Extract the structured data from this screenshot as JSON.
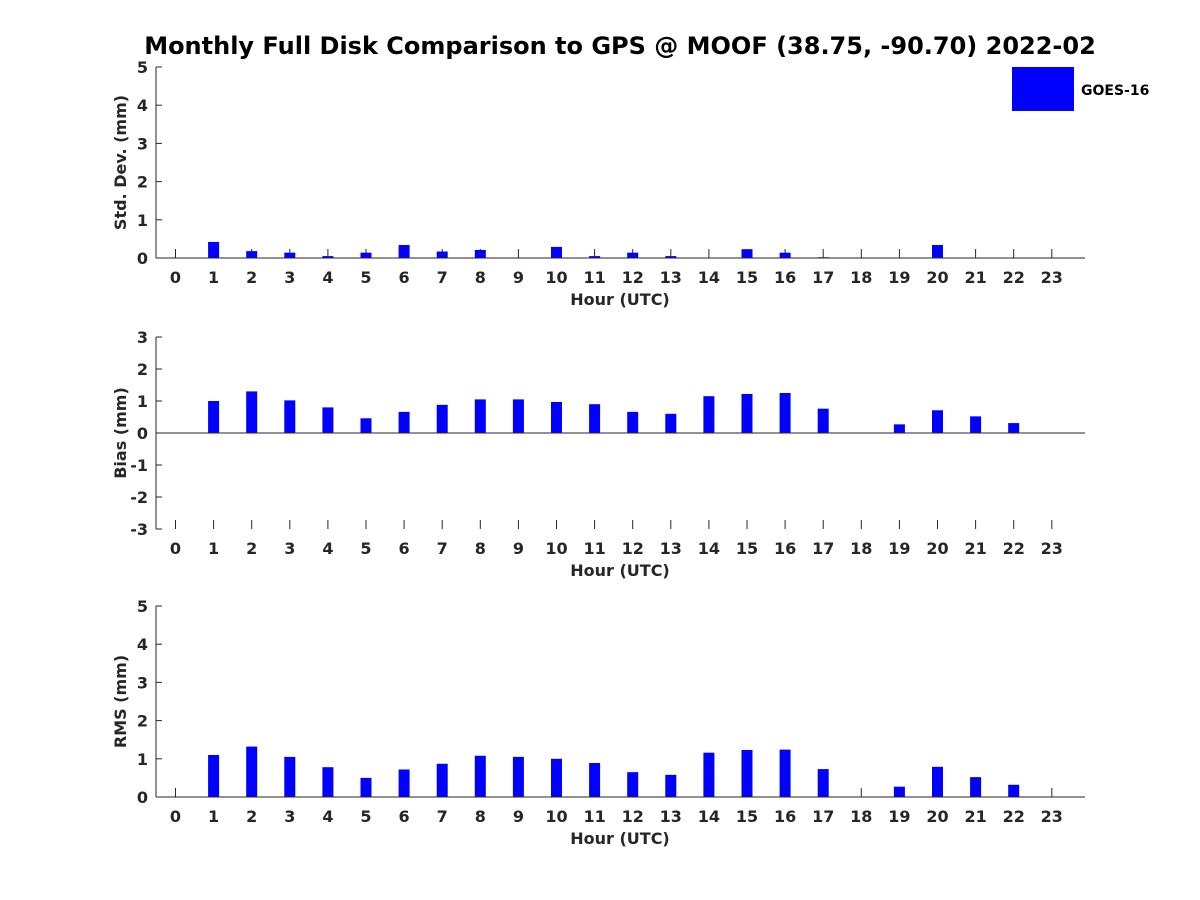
{
  "title": "Monthly Full Disk Comparison to GPS @ MOOF (38.75, -90.70) 2022-02",
  "legend": {
    "label": "GOES-16",
    "color": "#0000ff",
    "placement": "top-right"
  },
  "chart_data": [
    {
      "type": "bar",
      "name": "stddev",
      "xlabel": "Hour (UTC)",
      "ylabel": "Std. Dev. (mm)",
      "ylim": [
        0,
        5
      ],
      "yticks": [
        0,
        1,
        2,
        3,
        4,
        5
      ],
      "categories": [
        "0",
        "1",
        "2",
        "3",
        "4",
        "5",
        "6",
        "7",
        "8",
        "9",
        "10",
        "11",
        "12",
        "13",
        "14",
        "15",
        "16",
        "17",
        "18",
        "19",
        "20",
        "21",
        "22",
        "23"
      ],
      "series": [
        {
          "name": "GOES-16",
          "values": [
            null,
            0.42,
            0.18,
            0.14,
            0.05,
            0.14,
            0.34,
            0.17,
            0.21,
            null,
            0.29,
            0.05,
            0.14,
            0.05,
            null,
            0.23,
            0.14,
            0.02,
            null,
            null,
            0.34,
            null,
            null,
            null
          ]
        }
      ]
    },
    {
      "type": "bar",
      "name": "bias",
      "xlabel": "Hour (UTC)",
      "ylabel": "Bias (mm)",
      "ylim": [
        -3,
        3
      ],
      "yticks": [
        -3,
        -2,
        -1,
        0,
        1,
        2,
        3
      ],
      "categories": [
        "0",
        "1",
        "2",
        "3",
        "4",
        "5",
        "6",
        "7",
        "8",
        "9",
        "10",
        "11",
        "12",
        "13",
        "14",
        "15",
        "16",
        "17",
        "18",
        "19",
        "20",
        "21",
        "22",
        "23"
      ],
      "series": [
        {
          "name": "GOES-16",
          "values": [
            null,
            1.0,
            1.3,
            1.02,
            0.8,
            0.46,
            0.66,
            0.88,
            1.05,
            1.05,
            0.97,
            0.9,
            0.66,
            0.6,
            1.15,
            1.22,
            1.25,
            0.76,
            null,
            0.27,
            0.71,
            0.52,
            0.31,
            null
          ]
        }
      ]
    },
    {
      "type": "bar",
      "name": "rms",
      "xlabel": "Hour (UTC)",
      "ylabel": "RMS (mm)",
      "ylim": [
        0,
        5
      ],
      "yticks": [
        0,
        1,
        2,
        3,
        4,
        5
      ],
      "categories": [
        "0",
        "1",
        "2",
        "3",
        "4",
        "5",
        "6",
        "7",
        "8",
        "9",
        "10",
        "11",
        "12",
        "13",
        "14",
        "15",
        "16",
        "17",
        "18",
        "19",
        "20",
        "21",
        "22",
        "23"
      ],
      "series": [
        {
          "name": "GOES-16",
          "values": [
            null,
            1.1,
            1.32,
            1.05,
            0.78,
            0.5,
            0.72,
            0.87,
            1.08,
            1.05,
            1.0,
            0.89,
            0.65,
            0.58,
            1.16,
            1.23,
            1.24,
            0.73,
            null,
            0.27,
            0.79,
            0.52,
            0.32,
            null
          ]
        }
      ]
    }
  ]
}
